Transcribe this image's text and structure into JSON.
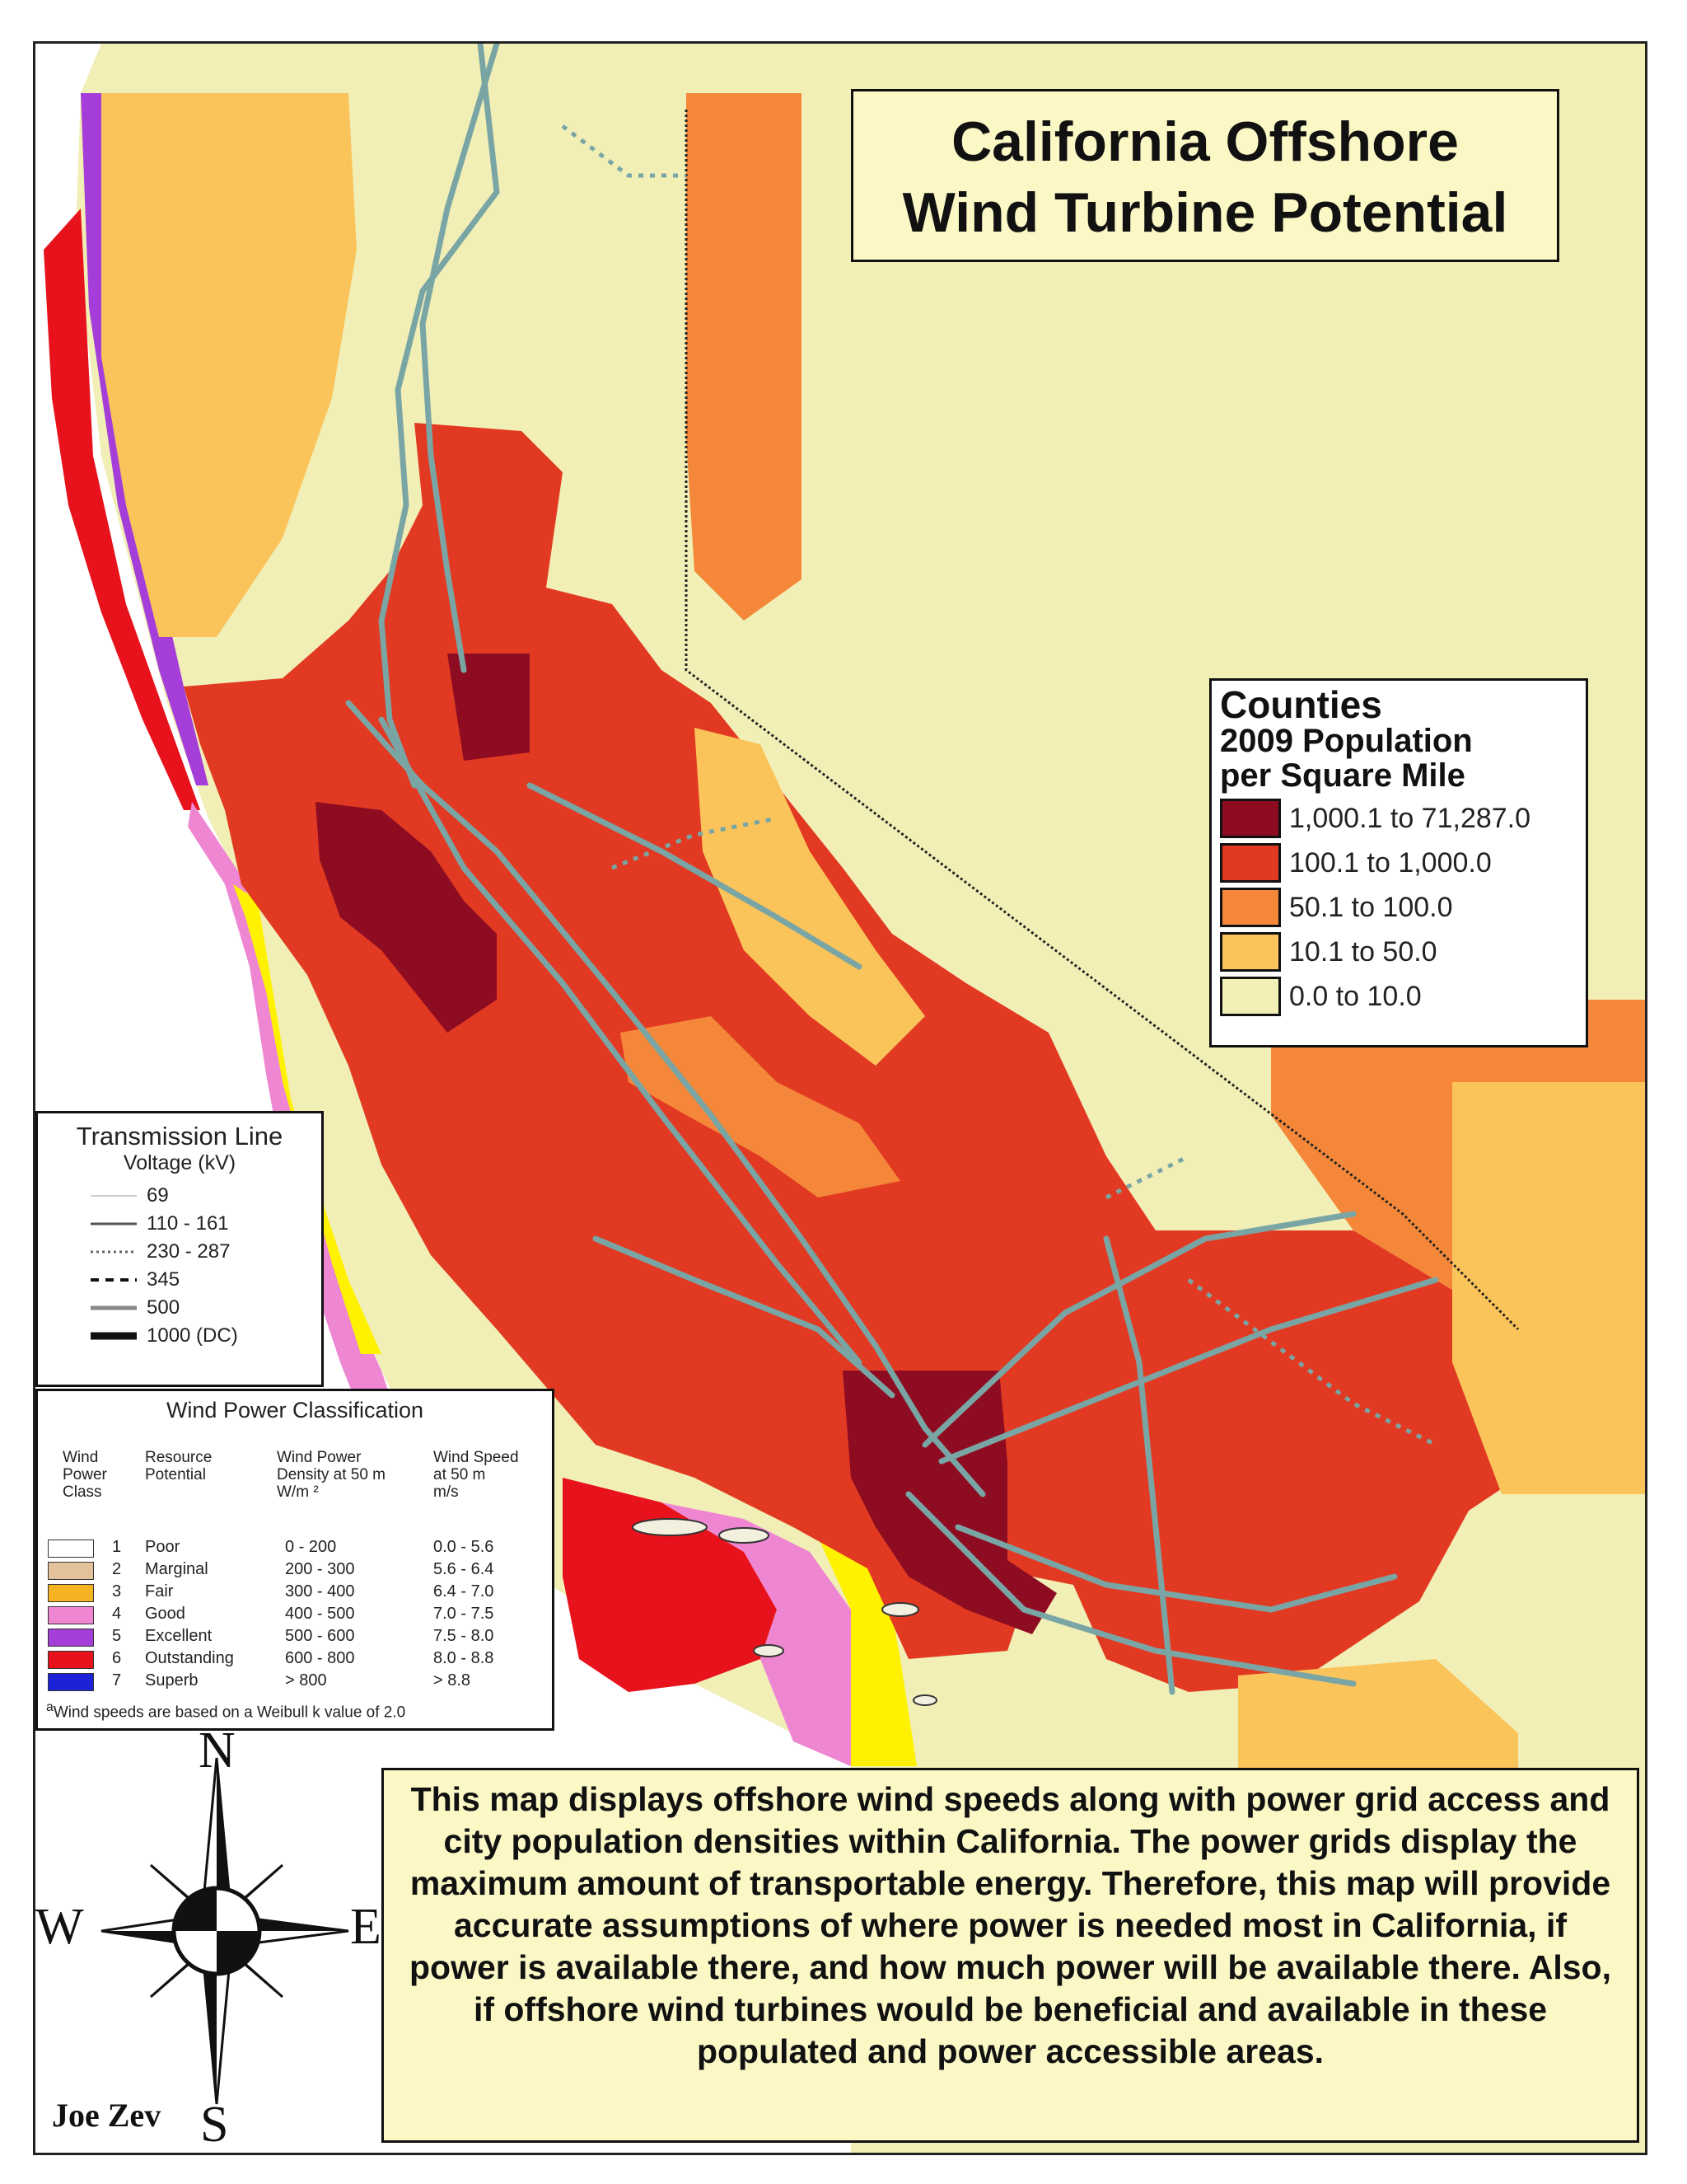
{
  "title": {
    "line1": "California Offshore",
    "line2": "Wind Turbine Potential"
  },
  "county_legend": {
    "title": "Counties",
    "subtitle1": "2009 Population",
    "subtitle2": "per Square Mile",
    "classes": [
      {
        "label": "1,000.1 to 71,287.0",
        "color": "#8e0c21"
      },
      {
        "label": "100.1 to 1,000.0",
        "color": "#e23a22"
      },
      {
        "label": "50.1 to 100.0",
        "color": "#f4873a"
      },
      {
        "label": "10.1 to 50.0",
        "color": "#fbc45b"
      },
      {
        "label": "0.0 to 10.0",
        "color": "#f1efb6"
      }
    ]
  },
  "transmission_legend": {
    "title": "Transmission Line",
    "subtitle": "Voltage (kV)",
    "items": [
      {
        "label": "69",
        "style": "thin"
      },
      {
        "label": "110 - 161",
        "style": "solid"
      },
      {
        "label": "230 - 287",
        "style": "dotted"
      },
      {
        "label": "345",
        "style": "dashed"
      },
      {
        "label": "500",
        "style": "thick-gray"
      },
      {
        "label": "1000 (DC)",
        "style": "heavy"
      }
    ]
  },
  "wind_legend": {
    "title": "Wind Power Classification",
    "headers": {
      "class": "Wind\nPower\nClass",
      "potential": "Resource\nPotential",
      "density": "Wind Power\nDensity at 50 m\nW/m ²",
      "speed": "Wind Speed\nat 50 m\nm/s"
    },
    "rows": [
      {
        "class": "1",
        "potential": "Poor",
        "density": "0 - 200",
        "speed": "0.0 - 5.6",
        "color": "#ffffff"
      },
      {
        "class": "2",
        "potential": "Marginal",
        "density": "200 - 300",
        "speed": "5.6 - 6.4",
        "color": "#e3c29b"
      },
      {
        "class": "3",
        "potential": "Fair",
        "density": "300 - 400",
        "speed": "6.4 - 7.0",
        "color": "#f5b323"
      },
      {
        "class": "4",
        "potential": "Good",
        "density": "400 - 500",
        "speed": "7.0 - 7.5",
        "color": "#ee86d2"
      },
      {
        "class": "5",
        "potential": "Excellent",
        "density": "500 - 600",
        "speed": "7.5 - 8.0",
        "color": "#a53ed8"
      },
      {
        "class": "6",
        "potential": "Outstanding",
        "density": "600 - 800",
        "speed": "8.0 - 8.8",
        "color": "#e8121c"
      },
      {
        "class": "7",
        "potential": "Superb",
        "density": "> 800",
        "speed": "> 8.8",
        "color": "#1c22d6"
      }
    ],
    "note_marker": "a",
    "note": "Wind speeds are based on a Weibull k value of 2.0"
  },
  "compass": {
    "north": "N",
    "south": "S",
    "east": "E",
    "west": "W"
  },
  "description": "This map displays offshore wind speeds along with power grid access and city population densities within California. The power grids display the maximum amount of transportable energy. Therefore, this map will provide accurate assumptions of where power is needed most in California, if power is available there, and how much power will be available there. Also, if offshore wind turbines would be beneficial and available in these populated and power accessible areas.",
  "author": "Joe Zev",
  "colors": {
    "ocean": "#ffffff",
    "transmission": "#7aa5a5",
    "background_land": "#f1efb6"
  }
}
